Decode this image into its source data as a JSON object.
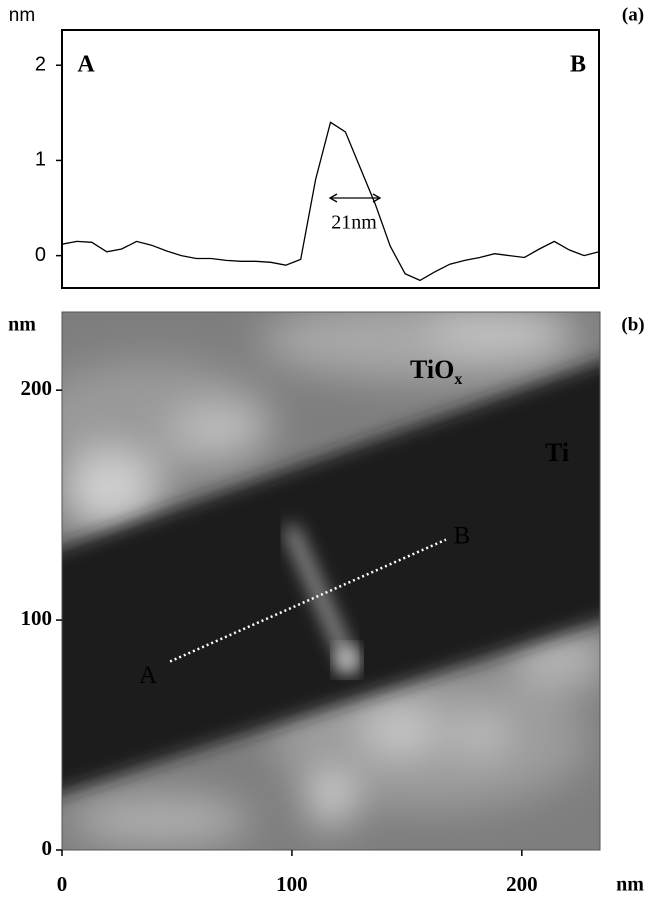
{
  "chart_data": [
    {
      "type": "line",
      "panel_label": "(a)",
      "ylabel": "nm",
      "color": "#000000",
      "values": [
        0.12,
        0.15,
        0.14,
        0.04,
        0.07,
        0.15,
        0.11,
        0.05,
        0.0,
        -0.03,
        -0.03,
        -0.05,
        -0.06,
        -0.06,
        -0.07,
        -0.1,
        -0.04,
        0.8,
        1.4,
        1.3,
        0.92,
        0.54,
        0.1,
        -0.19,
        -0.26,
        -0.17,
        -0.09,
        -0.05,
        -0.02,
        0.02,
        0.0,
        -0.02,
        0.07,
        0.15,
        0.06,
        0.0,
        0.04
      ],
      "ylim": [
        -0.34,
        2.37
      ],
      "yticks": [
        0,
        1,
        2
      ],
      "end_labels": [
        "A",
        "B"
      ],
      "width_label": "21nm"
    },
    {
      "type": "image",
      "panel_label": "(b)",
      "xlabel": "nm",
      "ylabel": "nm",
      "xlim": [
        0,
        234
      ],
      "ylim": [
        0,
        234
      ],
      "xticks": [
        0,
        100,
        200
      ],
      "yticks": [
        0,
        100,
        200
      ],
      "region_labels": [
        {
          "main": "TiO",
          "sub": "x"
        },
        {
          "main": "Ti"
        }
      ],
      "scan_line": {
        "x": [
          47,
          167
        ],
        "y": [
          82,
          135
        ],
        "labels": [
          "A",
          "B"
        ]
      }
    }
  ]
}
